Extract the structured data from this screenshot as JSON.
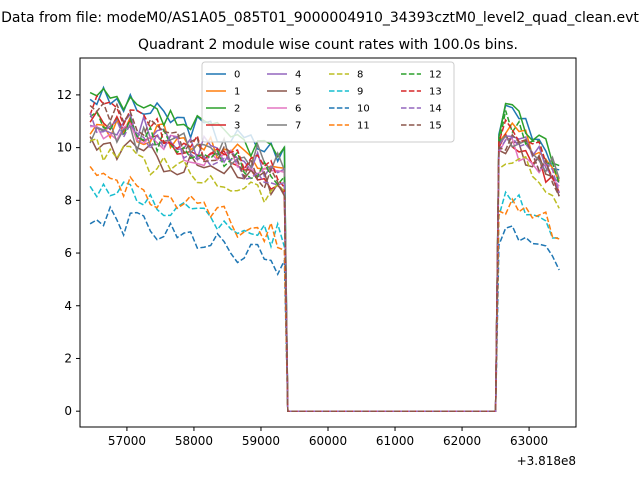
{
  "suptitle": "Data from file: modeM0/AS1A05_085T01_9000004910_34393cztM0_level2_quad_clean.evt",
  "chart_data": {
    "type": "line",
    "title": "Quadrant 2 module wise count rates with 100.0s bins.",
    "xlabel": "",
    "ylabel": "",
    "x_offset_label": "+3.818e8",
    "xlim": [
      56300,
      63700
    ],
    "ylim": [
      -0.6,
      13.4
    ],
    "xticks": [
      57000,
      58000,
      59000,
      60000,
      61000,
      62000,
      63000
    ],
    "xtick_labels": [
      "57000",
      "58000",
      "59000",
      "60000",
      "61000",
      "62000",
      "63000"
    ],
    "yticks": [
      0,
      2,
      4,
      6,
      8,
      10,
      12
    ],
    "ytick_labels": [
      "0",
      "2",
      "4",
      "6",
      "8",
      "10",
      "12"
    ],
    "grid": false,
    "legend_position": "upper center",
    "legend_columns": 4,
    "segments": [
      {
        "x_start": 56450,
        "x_step": 100,
        "x_end": 59350
      },
      {
        "x_start": 59400,
        "x_step": 100,
        "x_end": 62500,
        "constant": 0
      },
      {
        "x_start": 62550,
        "x_step": 100,
        "x_end": 63450
      }
    ],
    "series": [
      {
        "name": "0",
        "color": "#1f77b4",
        "dashed": false,
        "level1": 12.0,
        "tail1": 9.8,
        "start2": 10.5,
        "level2": 11.6,
        "tail2": 9.2
      },
      {
        "name": "1",
        "color": "#ff7f0e",
        "dashed": false,
        "level1": 11.0,
        "tail1": 9.5,
        "start2": 10.2,
        "level2": 10.8,
        "tail2": 8.8
      },
      {
        "name": "2",
        "color": "#2ca02c",
        "dashed": false,
        "level1": 11.9,
        "tail1": 9.8,
        "start2": 10.4,
        "level2": 11.3,
        "tail2": 9.4
      },
      {
        "name": "3",
        "color": "#d62728",
        "dashed": false,
        "level1": 11.1,
        "tail1": 8.6,
        "start2": 10.0,
        "level2": 10.4,
        "tail2": 8.4
      },
      {
        "name": "4",
        "color": "#9467bd",
        "dashed": false,
        "level1": 11.3,
        "tail1": 9.0,
        "start2": 10.1,
        "level2": 10.6,
        "tail2": 8.8
      },
      {
        "name": "5",
        "color": "#8c564b",
        "dashed": false,
        "level1": 10.2,
        "tail1": 8.5,
        "start2": 9.9,
        "level2": 10.2,
        "tail2": 8.3
      },
      {
        "name": "6",
        "color": "#e377c2",
        "dashed": false,
        "level1": 10.9,
        "tail1": 8.9,
        "start2": 9.8,
        "level2": 10.1,
        "tail2": 8.7
      },
      {
        "name": "7",
        "color": "#7f7f7f",
        "dashed": false,
        "level1": 10.6,
        "tail1": 9.5,
        "start2": 10.2,
        "level2": 10.5,
        "tail2": 9.0
      },
      {
        "name": "8",
        "color": "#bcbd22",
        "dashed": true,
        "level1": 10.0,
        "tail1": 8.2,
        "start2": 9.2,
        "level2": 9.7,
        "tail2": 7.9
      },
      {
        "name": "9",
        "color": "#17becf",
        "dashed": true,
        "level1": 8.6,
        "tail1": 6.6,
        "start2": 7.4,
        "level2": 8.0,
        "tail2": 6.8
      },
      {
        "name": "10",
        "color": "#1f77b4",
        "dashed": true,
        "level1": 7.5,
        "tail1": 5.6,
        "start2": 6.3,
        "level2": 6.9,
        "tail2": 5.6
      },
      {
        "name": "11",
        "color": "#ff7f0e",
        "dashed": true,
        "level1": 9.0,
        "tail1": 6.5,
        "start2": 7.6,
        "level2": 7.7,
        "tail2": 6.8
      },
      {
        "name": "12",
        "color": "#2ca02c",
        "dashed": true,
        "level1": 11.2,
        "tail1": 8.8,
        "start2": 10.1,
        "level2": 11.0,
        "tail2": 8.9
      },
      {
        "name": "13",
        "color": "#d62728",
        "dashed": true,
        "level1": 11.6,
        "tail1": 8.9,
        "start2": 10.2,
        "level2": 10.9,
        "tail2": 8.7
      },
      {
        "name": "14",
        "color": "#9467bd",
        "dashed": true,
        "level1": 11.0,
        "tail1": 8.6,
        "start2": 9.9,
        "level2": 10.4,
        "tail2": 8.6
      },
      {
        "name": "15",
        "color": "#8c564b",
        "dashed": true,
        "level1": 11.6,
        "tail1": 8.6,
        "start2": 10.0,
        "level2": 10.3,
        "tail2": 8.5
      }
    ]
  }
}
